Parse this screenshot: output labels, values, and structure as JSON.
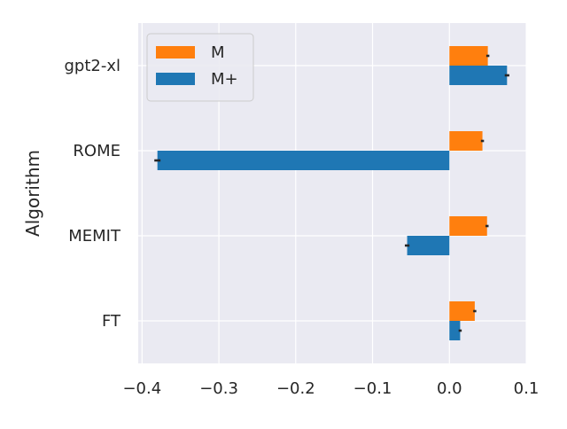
{
  "chart_data": {
    "type": "bar",
    "orientation": "horizontal",
    "title": "",
    "xlabel": "",
    "ylabel": "Algorithm",
    "categories": [
      "gpt2-xl",
      "ROME",
      "MEMIT",
      "FT"
    ],
    "xlim": [
      -0.405,
      0.1
    ],
    "xticks": [
      -0.4,
      -0.3,
      -0.2,
      -0.1,
      0.0,
      0.1
    ],
    "xtick_labels": [
      "−0.4",
      "−0.3",
      "−0.2",
      "−0.1",
      "0.0",
      "0.1"
    ],
    "grid": true,
    "legend_position": "top-left",
    "series": [
      {
        "name": "M",
        "color": "#ff7f0e",
        "values": [
          0.05,
          0.043,
          0.049,
          0.033
        ],
        "errors": [
          0.002,
          0.002,
          0.002,
          0.002
        ]
      },
      {
        "name": "M+",
        "color": "#1f77b4",
        "values": [
          0.075,
          -0.38,
          -0.055,
          0.014
        ],
        "errors": [
          0.003,
          0.004,
          0.003,
          0.002
        ]
      }
    ]
  }
}
